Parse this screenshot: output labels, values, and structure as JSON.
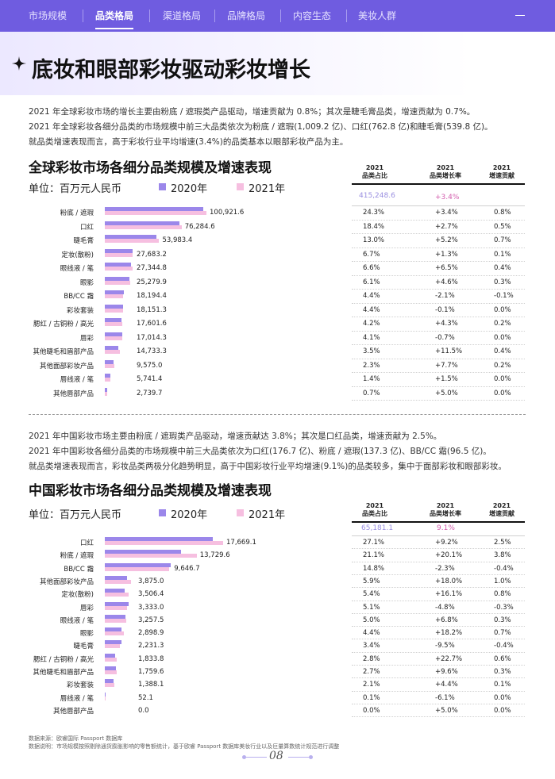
{
  "nav": {
    "tabs": [
      {
        "label": "市场规模",
        "active": false
      },
      {
        "label": "品类格局",
        "active": true
      },
      {
        "label": "渠道格局",
        "active": false
      },
      {
        "label": "品牌格局",
        "active": false
      },
      {
        "label": "内容生态",
        "active": false
      },
      {
        "label": "美妆人群",
        "active": false
      }
    ],
    "menu_icon": "menu-line-icon"
  },
  "title": "底妆和眼部彩妆驱动彩妆增长",
  "sparkle_icon": "sparkle-icon",
  "global": {
    "paragraphs": [
      "2021 年全球彩妆市场的增长主要由粉底 / 遮瑕类产品驱动，增速贡献为 0.8%；其次是睫毛膏品类，增速贡献为 0.7%。",
      "2021 年全球彩妆各细分品类的市场规模中前三大品类依次为粉底 / 遮瑕(1,009.2 亿)、口红(762.8 亿)和睫毛膏(539.8 亿)。",
      "就品类增速表现而言，高于彩妆行业平均增速(3.4%)的品类基本以眼部彩妆产品为主。"
    ],
    "chart_title": "全球彩妆市场各细分品类规模及增速表现",
    "unit": "单位：百万元人民币",
    "legend": [
      "2020年",
      "2021年"
    ],
    "headers": [
      "2021\n品类占比",
      "2021\n品类增长率",
      "2021\n增速贡献"
    ],
    "total": "415,248.6",
    "total_growth": "+3.4%"
  },
  "china": {
    "paragraphs": [
      "2021 年中国彩妆市场主要由粉底 / 遮瑕类产品驱动，增速贡献达 3.8%；其次是口红品类，增速贡献为 2.5%。",
      "2021 年中国彩妆各细分品类的市场规模中前三大品类依次为口红(176.7 亿)、粉底 / 遮瑕(137.3 亿)、BB/CC 霜(96.5 亿)。",
      "就品类增速表现而言，彩妆品类两极分化趋势明显，高于中国彩妆行业平均增速(9.1%)的品类较多，集中于面部彩妆和眼部彩妆。"
    ],
    "chart_title": "中国彩妆市场各细分品类规模及增速表现",
    "unit": "单位：百万元人民币",
    "legend": [
      "2020年",
      "2021年"
    ],
    "headers": [
      "2021\n品类占比",
      "2021\n品类增长率",
      "2021\n增速贡献"
    ],
    "total": "65,181.1",
    "total_growth": "9.1%"
  },
  "chart_data": [
    {
      "type": "bar",
      "title": "全球彩妆市场各细分品类规模及增速表现",
      "unit": "单位：百万元人民币",
      "categories": [
        "粉底 / 遮瑕",
        "口红",
        "睫毛膏",
        "定妆(散粉)",
        "眼线液 / 笔",
        "眼影",
        "BB/CC 霜",
        "彩妆套装",
        "腮红 / 古铜粉 / 高光",
        "唇彩",
        "其他睫毛和眉部产品",
        "其他面部彩妆产品",
        "唇线液 / 笔",
        "其他唇部产品"
      ],
      "series": [
        {
          "name": "2020年",
          "values": [
            97600,
            74300,
            51300,
            27300,
            25700,
            24200,
            18600,
            18200,
            16900,
            17100,
            13200,
            8900,
            5660,
            2610
          ]
        },
        {
          "name": "2021年",
          "values": [
            100921.6,
            76284.6,
            53983.4,
            27683.2,
            27344.8,
            25279.9,
            18194.4,
            18151.3,
            17601.6,
            17014.3,
            14733.3,
            9575.0,
            5741.4,
            2739.7
          ]
        }
      ],
      "value_labels": [
        "100,921.6",
        "76,284.6",
        "53,983.4",
        "27,683.2",
        "27,344.8",
        "25,279.9",
        "18,194.4",
        "18,151.3",
        "17,601.6",
        "17,014.3",
        "14,733.3",
        "9,575.0",
        "5,741.4",
        "2,739.7"
      ],
      "share": [
        "24.3%",
        "18.4%",
        "13.0%",
        "6.7%",
        "6.6%",
        "6.1%",
        "4.4%",
        "4.4%",
        "4.2%",
        "4.1%",
        "3.5%",
        "2.3%",
        "1.4%",
        "0.7%"
      ],
      "growth": [
        "+3.4%",
        "+2.7%",
        "+5.2%",
        "+1.3%",
        "+6.5%",
        "+4.6%",
        "-2.1%",
        "-0.1%",
        "+4.3%",
        "-0.7%",
        "+11.5%",
        "+7.7%",
        "+1.5%",
        "+5.0%"
      ],
      "contribution": [
        "0.8%",
        "0.5%",
        "0.7%",
        "0.1%",
        "0.4%",
        "0.3%",
        "-0.1%",
        "0.0%",
        "0.2%",
        "0.0%",
        "0.4%",
        "0.2%",
        "0.0%",
        "0.0%"
      ]
    },
    {
      "type": "bar",
      "title": "中国彩妆市场各细分品类规模及增速表现",
      "unit": "单位：百万元人民币",
      "categories": [
        "口红",
        "粉底 / 遮瑕",
        "BB/CC 霜",
        "其他面部彩妆产品",
        "定妆(散粉)",
        "唇彩",
        "眼线液 / 笔",
        "眼影",
        "睫毛膏",
        "腮红 / 古铜粉 / 高光",
        "其他睫毛和眉部产品",
        "彩妆套装",
        "唇线液 / 笔",
        "其他唇部产品"
      ],
      "series": [
        {
          "name": "2020年",
          "values": [
            16180,
            11420,
            9870,
            3280,
            3020,
            3500,
            3050,
            2450,
            2470,
            1500,
            1610,
            1330,
            55,
            0
          ]
        },
        {
          "name": "2021年",
          "values": [
            17669.1,
            13729.6,
            9646.7,
            3875.0,
            3506.4,
            3333.0,
            3257.5,
            2898.9,
            2231.3,
            1833.8,
            1759.6,
            1388.1,
            52.1,
            0.0
          ]
        }
      ],
      "value_labels": [
        "17,669.1",
        "13,729.6",
        "9,646.7",
        "3,875.0",
        "3,506.4",
        "3,333.0",
        "3,257.5",
        "2,898.9",
        "2,231.3",
        "1,833.8",
        "1,759.6",
        "1,388.1",
        "52.1",
        "0.0"
      ],
      "share": [
        "27.1%",
        "21.1%",
        "14.8%",
        "5.9%",
        "5.4%",
        "5.1%",
        "5.0%",
        "4.4%",
        "3.4%",
        "2.8%",
        "2.7%",
        "2.1%",
        "0.1%",
        "0.0%"
      ],
      "growth": [
        "+9.2%",
        "+20.1%",
        "-2.3%",
        "+18.0%",
        "+16.1%",
        "-4.8%",
        "+6.8%",
        "+18.2%",
        "-9.5%",
        "+22.7%",
        "+9.6%",
        "+4.4%",
        "-6.1%",
        "+5.0%"
      ],
      "contribution": [
        "2.5%",
        "3.8%",
        "-0.4%",
        "1.0%",
        "0.8%",
        "-0.3%",
        "0.3%",
        "0.7%",
        "-0.4%",
        "0.6%",
        "0.3%",
        "0.1%",
        "0.0%",
        "0.0%"
      ]
    }
  ],
  "footer": {
    "source": "数据来源：欧睿国际 Passport 数据库",
    "note": "数据说明：市场规模按照剔除通货膨胀影响的零售额统计，基于欧睿 Passport 数据库美妆行业以及巨量算数统计规范进行调整",
    "page": "08"
  },
  "colors": {
    "nav_bg": "#6f5ce0",
    "bar_2020": "#9b87ea",
    "bar_2021": "#f6bfe0",
    "accent_total": "#9a8fe0",
    "accent_growth": "#d35dad"
  }
}
